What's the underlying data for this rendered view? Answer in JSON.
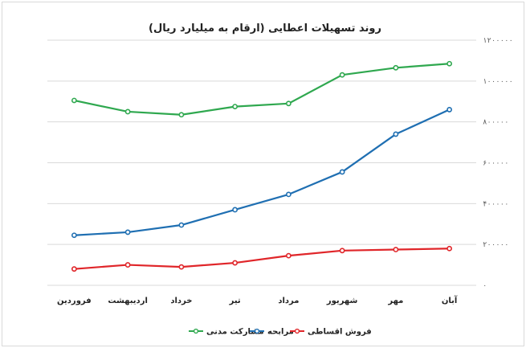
{
  "chart_data": {
    "type": "line",
    "title": "روند تسهیلات اعطایی (ارقام به میلیارد ریال)",
    "categories": [
      "فروردین",
      "اردیبهشت",
      "خرداد",
      "تیر",
      "مرداد",
      "شهریور",
      "مهر",
      "آبان"
    ],
    "y_ticks": [
      0,
      200000,
      400000,
      600000,
      800000,
      1000000,
      1200000
    ],
    "y_tick_labels": [
      "۰",
      "۲۰۰۰۰۰",
      "۴۰۰۰۰۰",
      "۶۰۰۰۰۰",
      "۸۰۰۰۰۰",
      "۱۰۰۰۰۰۰",
      "۱۲۰۰۰۰۰"
    ],
    "ylim": [
      0,
      1200000
    ],
    "ylabel": "",
    "xlabel": "",
    "grid": true,
    "legend_position": "bottom",
    "series": [
      {
        "name": "مشارکت مدنی",
        "color": "#2fa84f",
        "values": [
          905000,
          850000,
          835000,
          875000,
          890000,
          1030000,
          1065000,
          1085000
        ]
      },
      {
        "name": "مرابحه",
        "color": "#1f6fb2",
        "values": [
          245000,
          260000,
          295000,
          370000,
          445000,
          555000,
          740000,
          860000
        ]
      },
      {
        "name": "فروش اقساطی",
        "color": "#e0262a",
        "values": [
          80000,
          100000,
          90000,
          110000,
          145000,
          170000,
          175000,
          180000
        ]
      }
    ]
  }
}
